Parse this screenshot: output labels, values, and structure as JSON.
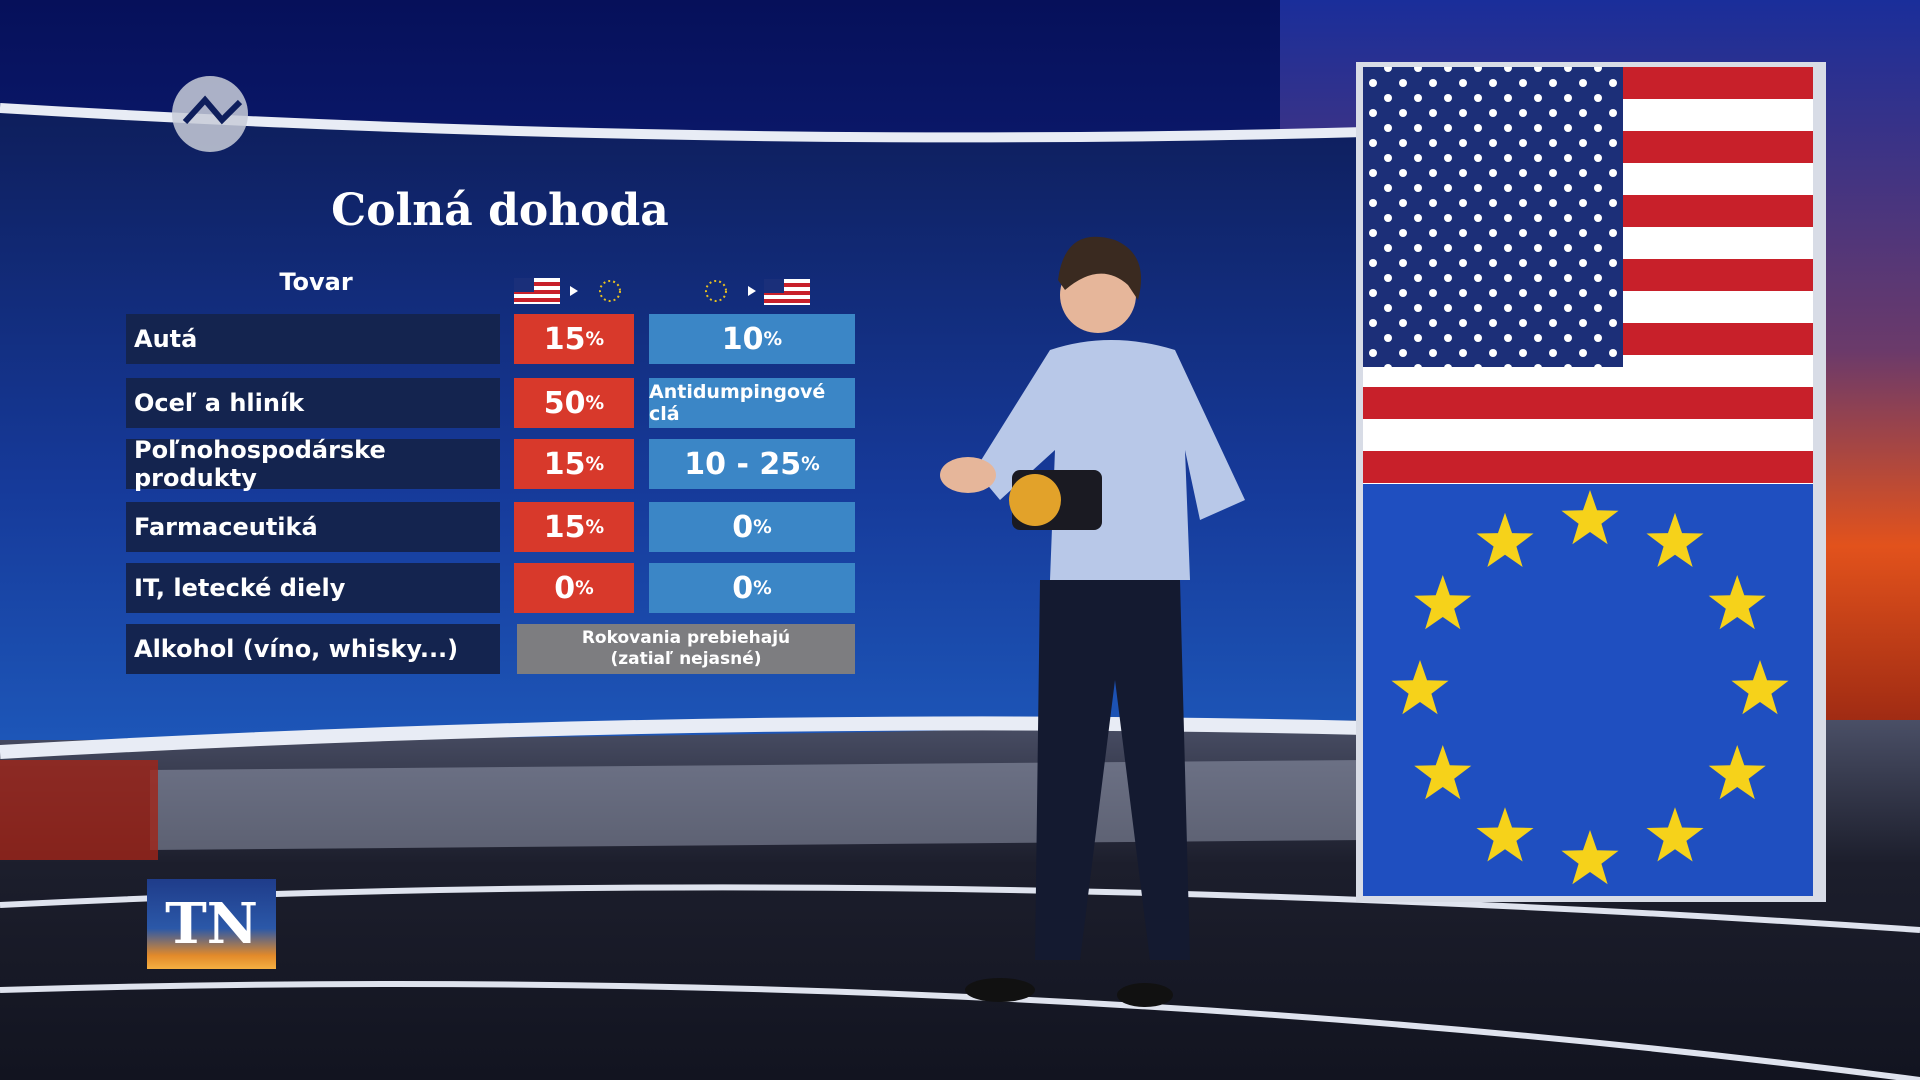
{
  "header": {
    "title": "Colná dohoda",
    "column_header": "Tovar"
  },
  "table": {
    "rows": [
      {
        "label": "Autá",
        "us_to_eu": "15%",
        "eu_to_us": "10%"
      },
      {
        "label": "Oceľ a hliník",
        "us_to_eu": "50%",
        "eu_to_us": "Antidumpingové clá"
      },
      {
        "label": "Poľnohospodárske produkty",
        "us_to_eu": "15%",
        "eu_to_us": "10 - 25%"
      },
      {
        "label": "Farmaceutiká",
        "us_to_eu": "15%",
        "eu_to_us": "0%"
      },
      {
        "label": "IT, letecké diely",
        "us_to_eu": "0%",
        "eu_to_us": "0%"
      },
      {
        "label": "Alkohol (víno, whisky...)",
        "note": [
          "Rokovania prebiehajú",
          "(zatiaľ nejasné)"
        ]
      }
    ]
  },
  "logo": {
    "text": "TN"
  }
}
